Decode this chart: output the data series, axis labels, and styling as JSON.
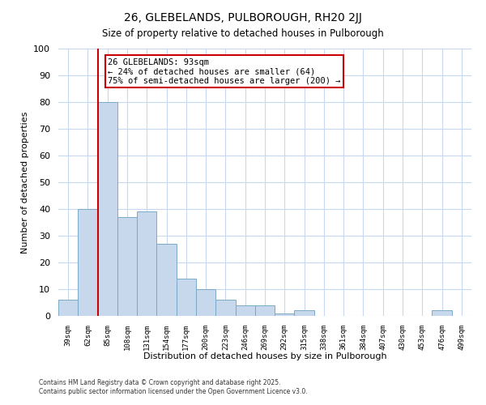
{
  "title": "26, GLEBELANDS, PULBOROUGH, RH20 2JJ",
  "subtitle": "Size of property relative to detached houses in Pulborough",
  "xlabel": "Distribution of detached houses by size in Pulborough",
  "ylabel": "Number of detached properties",
  "bar_labels": [
    "39sqm",
    "62sqm",
    "85sqm",
    "108sqm",
    "131sqm",
    "154sqm",
    "177sqm",
    "200sqm",
    "223sqm",
    "246sqm",
    "269sqm",
    "292sqm",
    "315sqm",
    "338sqm",
    "361sqm",
    "384sqm",
    "407sqm",
    "430sqm",
    "453sqm",
    "476sqm",
    "499sqm"
  ],
  "bar_heights": [
    6,
    40,
    80,
    37,
    39,
    27,
    14,
    10,
    6,
    4,
    4,
    1,
    2,
    0,
    0,
    0,
    0,
    0,
    0,
    2,
    0
  ],
  "bar_color": "#c8d8ec",
  "bar_edge_color": "#7aaac8",
  "property_line_x": 2.0,
  "property_line_color": "#cc0000",
  "annotation_title": "26 GLEBELANDS: 93sqm",
  "annotation_line1": "← 24% of detached houses are smaller (64)",
  "annotation_line2": "75% of semi-detached houses are larger (200) →",
  "annotation_box_color": "#ffffff",
  "annotation_box_edge_color": "#cc0000",
  "ylim": [
    0,
    100
  ],
  "yticks": [
    0,
    10,
    20,
    30,
    40,
    50,
    60,
    70,
    80,
    90,
    100
  ],
  "grid_color": "#c8d8f0",
  "footer_line1": "Contains HM Land Registry data © Crown copyright and database right 2025.",
  "footer_line2": "Contains public sector information licensed under the Open Government Licence v3.0.",
  "bg_color": "#ffffff",
  "title_fontsize": 10,
  "subtitle_fontsize": 8.5,
  "bar_width": 1.0
}
